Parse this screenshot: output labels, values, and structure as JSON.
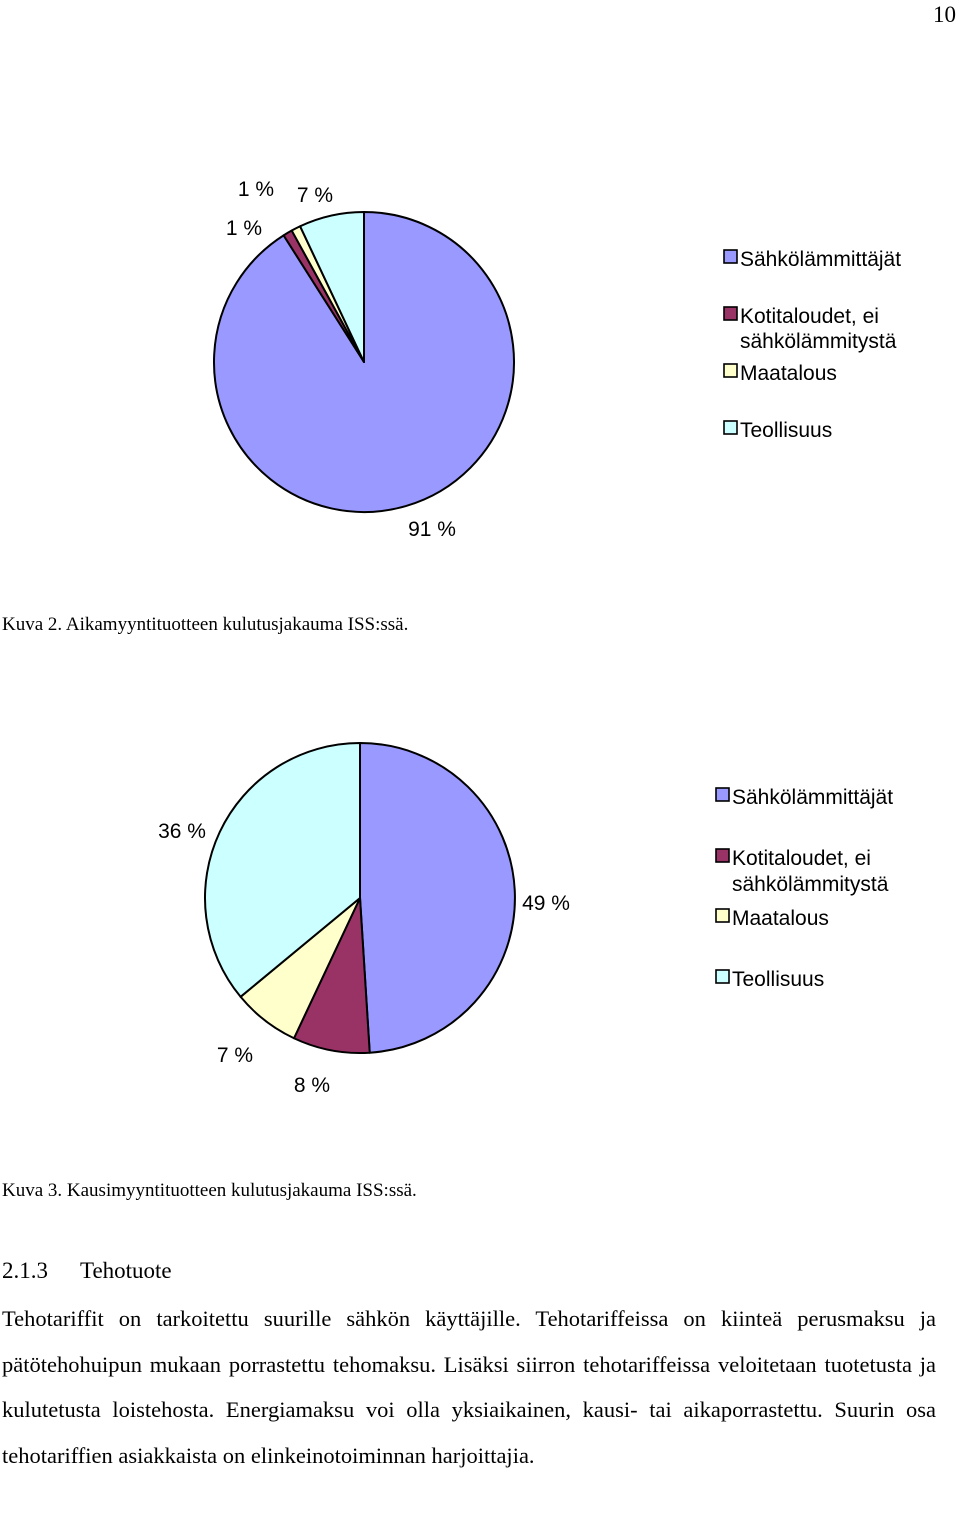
{
  "page": {
    "number": "10"
  },
  "figures": [
    {
      "caption": "Kuva 2. Aikamyyntituotteen kulutusjakauma ISS:ssä."
    },
    {
      "caption": "Kuva 3. Kausimyyntituotteen kulutusjakauma ISS:ssä."
    }
  ],
  "section": {
    "number": "2.1.3",
    "title": "Tehotuote",
    "paragraph": "Tehotariffit on tarkoitettu suurille sähkön käyttäjille. Tehotariffeissa on kiinteä perusmaksu ja pätötehohuipun mukaan porrastettu tehomaksu. Lisäksi siirron tehotariffeissa veloitetaan tuotetusta ja kulutetusta loistehosta. Energiamaksu voi olla yksiaikainen, kausi- tai aikaporrastettu. Suurin osa tehotariffien asiakkaista on elinkeinotoiminnan harjoittajia."
  },
  "chart_data": [
    {
      "type": "pie",
      "title": "",
      "legend_position": "right",
      "categories": [
        "Sähkölämmittäjät",
        "Kotitaloudet, ei sähkölämmitystä",
        "Maatalous",
        "Teollisuus"
      ],
      "legend_lines": [
        [
          "Sähkölämmittäjät"
        ],
        [
          "Kotitaloudet, ei",
          "sähkölämmitystä"
        ],
        [
          "Maatalous"
        ],
        [
          "Teollisuus"
        ]
      ],
      "values": [
        91,
        1,
        1,
        7
      ],
      "data_labels": [
        "91 %",
        "1 %",
        "1 %",
        "7 %"
      ],
      "colors": [
        "#9999ff",
        "#993366",
        "#ffffcc",
        "#ccffff"
      ]
    },
    {
      "type": "pie",
      "title": "",
      "legend_position": "right",
      "categories": [
        "Sähkölämmittäjät",
        "Kotitaloudet, ei sähkölämmitystä",
        "Maatalous",
        "Teollisuus"
      ],
      "legend_lines": [
        [
          "Sähkölämmittäjät"
        ],
        [
          "Kotitaloudet, ei",
          "sähkölämmitystä"
        ],
        [
          "Maatalous"
        ],
        [
          "Teollisuus"
        ]
      ],
      "values": [
        49,
        8,
        7,
        36
      ],
      "data_labels": [
        "49 %",
        "8 %",
        "7 %",
        "36 %"
      ],
      "colors": [
        "#9999ff",
        "#993366",
        "#ffffcc",
        "#ccffff"
      ]
    }
  ]
}
